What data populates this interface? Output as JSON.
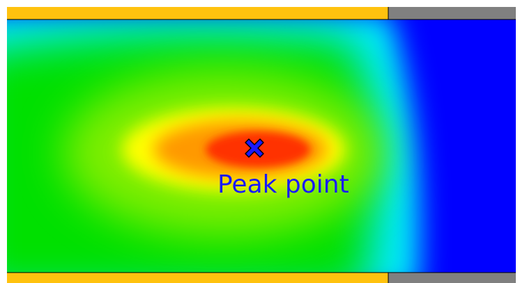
{
  "annotation": "Peak point"
}
